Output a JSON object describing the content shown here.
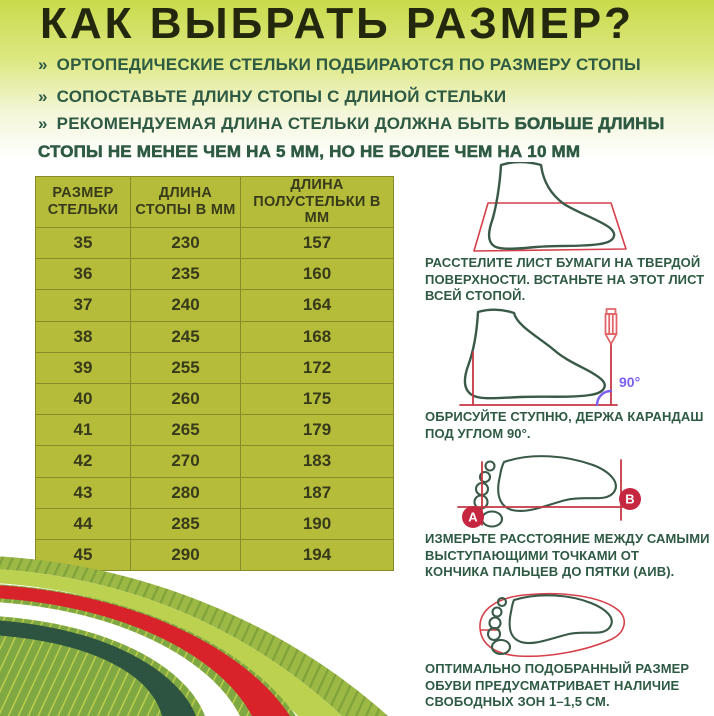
{
  "title": "КАК ВЫБРАТЬ РАЗМЕР?",
  "bullets": {
    "marker": "»",
    "item1": "ОРТОПЕДИЧЕСКИЕ СТЕЛЬКИ ПОДБИРАЮТСЯ ПО РАЗМЕРУ СТОПЫ",
    "item2": "СОПОСТАВЬТЕ ДЛИНУ СТОПЫ С ДЛИНОЙ СТЕЛЬКИ",
    "item3_normal": "РЕКОМЕНДУЕМАЯ ДЛИНА СТЕЛЬКИ ДОЛЖНА БЫТЬ ",
    "item3_bold": "БОЛЬШЕ ДЛИНЫ",
    "item3_line2": "СТОПЫ НЕ МЕНЕЕ ЧЕМ НА 5 ММ, НО НЕ БОЛЕЕ ЧЕМ НА 10 ММ"
  },
  "table": {
    "headers": [
      "РАЗМЕР СТЕЛЬКИ",
      "ДЛИНА СТОПЫ В ММ",
      "ДЛИНА ПОЛУСТЕЛЬКИ В ММ"
    ],
    "rows": [
      [
        "35",
        "230",
        "157"
      ],
      [
        "36",
        "235",
        "160"
      ],
      [
        "37",
        "240",
        "164"
      ],
      [
        "38",
        "245",
        "168"
      ],
      [
        "39",
        "255",
        "172"
      ],
      [
        "40",
        "260",
        "175"
      ],
      [
        "41",
        "265",
        "179"
      ],
      [
        "42",
        "270",
        "183"
      ],
      [
        "43",
        "280",
        "187"
      ],
      [
        "44",
        "285",
        "190"
      ],
      [
        "45",
        "290",
        "194"
      ]
    ]
  },
  "steps": [
    {
      "caption_lines": [
        "РАССТЕЛИТЕ ЛИСТ БУМАГИ НА ТВЕРДОЙ",
        "ПОВЕРХНОСТИ. ВСТАНЬТЕ НА ЭТОТ ЛИСТ",
        "ВСЕЙ СТОПОЙ."
      ]
    },
    {
      "caption_lines": [
        "ОБРИСУЙТЕ СТУПНЮ, ДЕРЖА КАРАНДАШ",
        "ПОД УГЛОМ 90°."
      ],
      "angle_label": "90°"
    },
    {
      "caption_lines": [
        "ИЗМЕРЬТЕ РАССТОЯНИЕ МЕЖДУ САМЫМИ",
        "ВЫСТУПАЮЩИМИ ТОЧКАМИ ОТ",
        "КОНЧИКА ПАЛЬЦЕВ ДО ПЯТКИ (АИВ)."
      ],
      "point_a": "А",
      "point_b": "В"
    },
    {
      "caption_lines": [
        "ОПТИМАЛЬНО ПОДОБРАННЫЙ РАЗМЕР",
        "ОБУВИ ПРЕДУСМАТРИВАЕТ НАЛИЧИЕ",
        "СВОБОДНЫХ ЗОН 1–1,5 СМ."
      ]
    }
  ],
  "colors": {
    "bg-top": "#c9da4b",
    "ink": "#23270e",
    "text-green": "#2e5a43",
    "table-bg": "#b5bc39",
    "table-line": "#878c28",
    "table-ink": "#383a1c",
    "outline-green": "#3a5a48",
    "accent-red": "#d5404a",
    "measure-red": "#c53843",
    "pencil-red": "#e06468",
    "badge-red": "#c52740",
    "purple": "#7a5ff0",
    "wave-green": "#7fa742",
    "wave-dark": "#2d5440",
    "wave-yellow": "#bcd14f",
    "wave-red": "#d8232b"
  }
}
